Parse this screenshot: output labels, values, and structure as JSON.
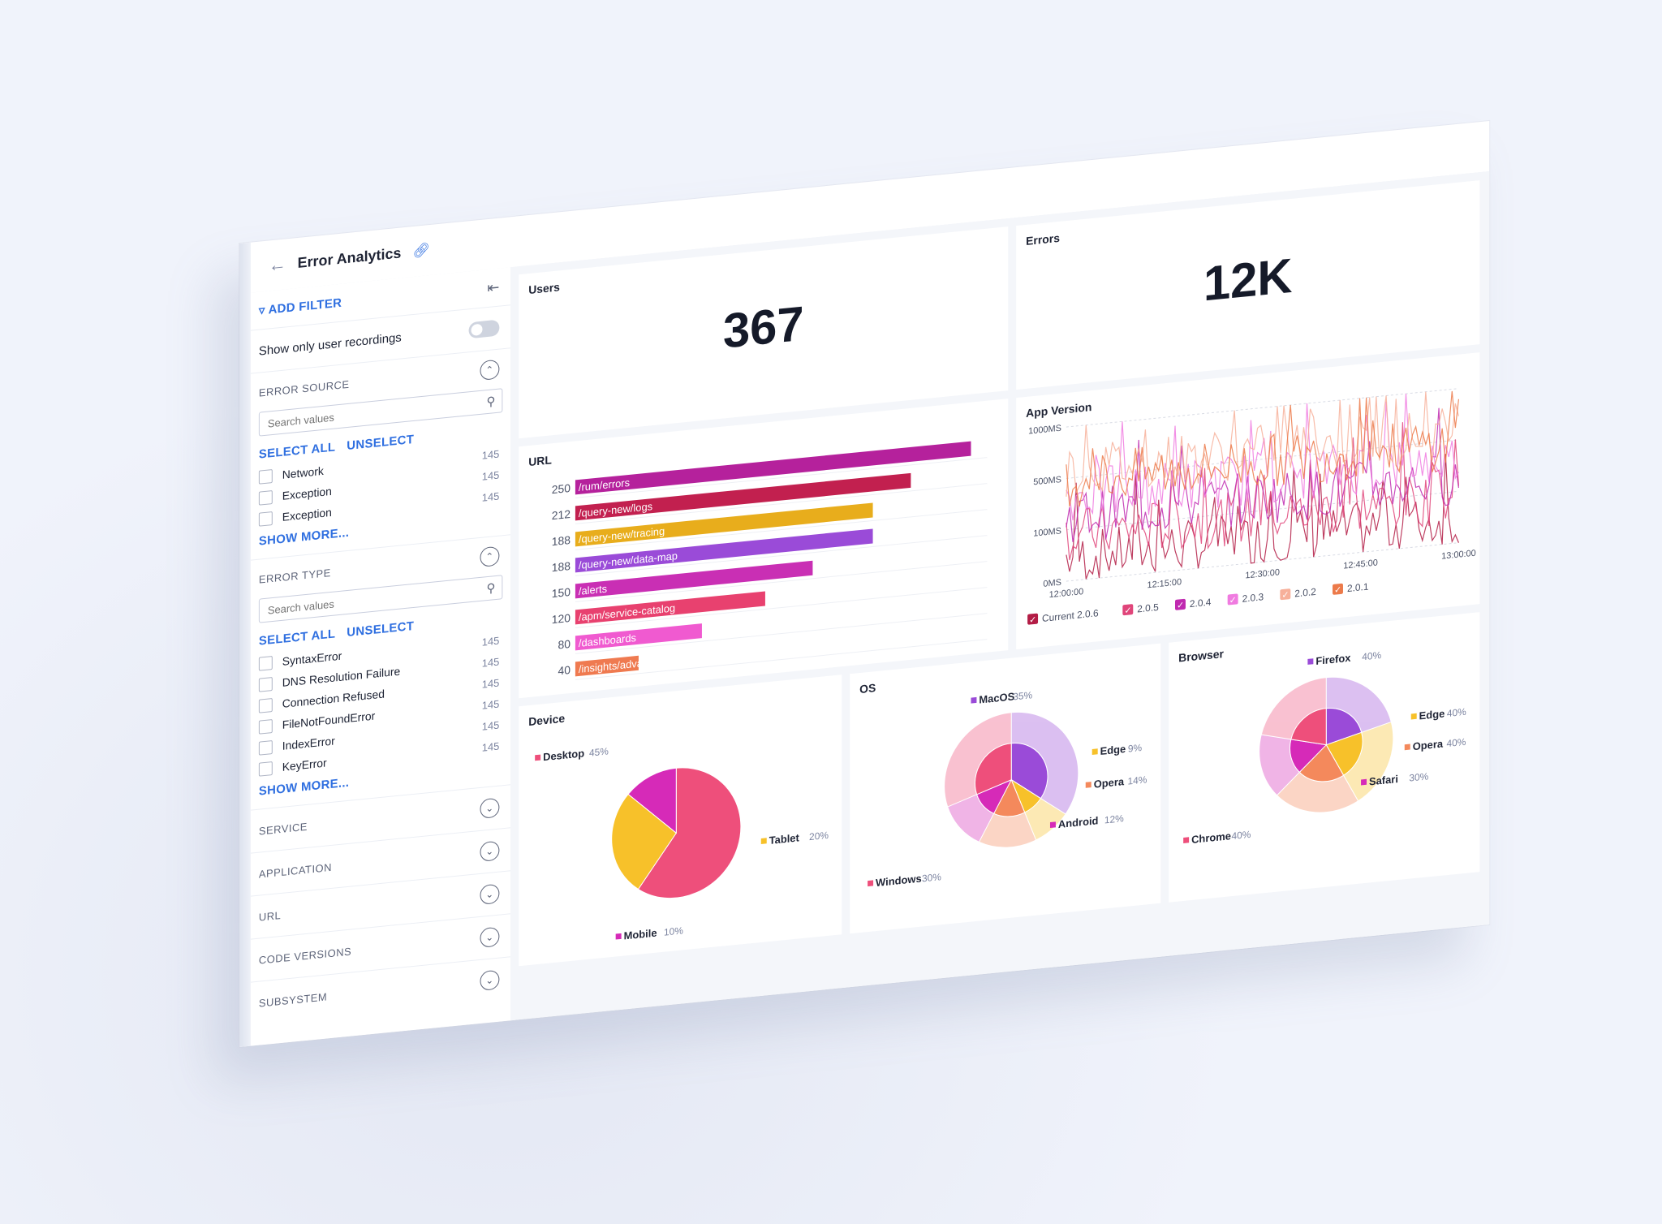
{
  "header": {
    "title": "Error Analytics"
  },
  "sidebar": {
    "add_filter": "ADD FILTER",
    "toggle_label": "Show only user recordings",
    "search_placeholder": "Search values",
    "select_all": "SELECT ALL",
    "unselect": "UNSELECT",
    "show_more": "SHOW MORE...",
    "error_source": {
      "label": "ERROR SOURCE",
      "items": [
        {
          "label": "Network",
          "count": "145"
        },
        {
          "label": "Exception",
          "count": "145"
        },
        {
          "label": "Exception",
          "count": "145"
        }
      ]
    },
    "error_type": {
      "label": "ERROR TYPE",
      "items": [
        {
          "label": "SyntaxError",
          "count": "145"
        },
        {
          "label": "DNS Resolution Failure",
          "count": "145"
        },
        {
          "label": "Connection Refused",
          "count": "145"
        },
        {
          "label": "FileNotFoundError",
          "count": "145"
        },
        {
          "label": "IndexError",
          "count": "145"
        },
        {
          "label": "KeyError",
          "count": "145"
        }
      ]
    },
    "collapsed": [
      "SERVICE",
      "APPLICATION",
      "URL",
      "CODE VERSIONS",
      "SUBSYSTEM"
    ]
  },
  "panels": {
    "users": {
      "title": "Users",
      "value": "367"
    },
    "errors": {
      "title": "Errors",
      "value": "12K"
    },
    "url": {
      "title": "URL"
    },
    "app_version": {
      "title": "App Version"
    },
    "device": {
      "title": "Device"
    },
    "os": {
      "title": "OS"
    },
    "browser": {
      "title": "Browser"
    }
  },
  "chart_data": [
    {
      "type": "bar",
      "orientation": "horizontal",
      "categories": [
        "/rum/errors",
        "/query-new/logs",
        "/query-new/tracing",
        "/query-new/data-map",
        "/alerts",
        "/apm/service-catalog",
        "/dashboards",
        "/insights/advancedalert"
      ],
      "values": [
        250,
        212,
        188,
        188,
        150,
        120,
        80,
        40
      ],
      "colors": [
        "#b5219c",
        "#c2204f",
        "#e8ad1c",
        "#9a4bd8",
        "#c92fb4",
        "#e8416f",
        "#f05ad0",
        "#ef7a50"
      ]
    },
    {
      "type": "line",
      "yticks": [
        "1000MS",
        "500MS",
        "100MS",
        "0MS"
      ],
      "xticks": [
        "12:00:00",
        "12:15:00",
        "12:30:00",
        "12:45:00",
        "13:00:00"
      ],
      "series": [
        {
          "name": "Current 2.0.6",
          "color": "#b31c45"
        },
        {
          "name": "2.0.5",
          "color": "#e0457a"
        },
        {
          "name": "2.0.4",
          "color": "#c02ab0"
        },
        {
          "name": "2.0.3",
          "color": "#f07be0"
        },
        {
          "name": "2.0.2",
          "color": "#f7b09a"
        },
        {
          "name": "2.0.1",
          "color": "#ec7a4a"
        }
      ]
    },
    {
      "type": "pie",
      "slices": [
        {
          "label": "Desktop",
          "pct": "45%",
          "value": 45,
          "color": "#ee4f7b"
        },
        {
          "label": "Tablet",
          "pct": "20%",
          "value": 20,
          "color": "#f7c12a"
        },
        {
          "label": "Mobile",
          "pct": "10%",
          "value": 10,
          "color": "#d62ab8"
        }
      ]
    },
    {
      "type": "pie",
      "slices": [
        {
          "label": "MacOS",
          "pct": "35%",
          "value": 35,
          "color": "#9a4bd8"
        },
        {
          "label": "Edge",
          "pct": "9%",
          "value": 9,
          "color": "#f7c12a"
        },
        {
          "label": "Opera",
          "pct": "14%",
          "value": 14,
          "color": "#f4895c"
        },
        {
          "label": "Android",
          "pct": "12%",
          "value": 12,
          "color": "#d62ab8"
        },
        {
          "label": "Windows",
          "pct": "30%",
          "value": 30,
          "color": "#ee4f7b"
        }
      ]
    },
    {
      "type": "pie",
      "slices": [
        {
          "label": "Firefox",
          "pct": "40%",
          "value": 40,
          "color": "#9a4bd8"
        },
        {
          "label": "Edge",
          "pct": "40%",
          "value": 40,
          "color": "#f7c12a"
        },
        {
          "label": "Opera",
          "pct": "40%",
          "value": 40,
          "color": "#f4895c"
        },
        {
          "label": "Safari",
          "pct": "30%",
          "value": 30,
          "color": "#d62ab8"
        },
        {
          "label": "Chrome",
          "pct": "40%",
          "value": 40,
          "color": "#ee4f7b"
        }
      ]
    }
  ]
}
